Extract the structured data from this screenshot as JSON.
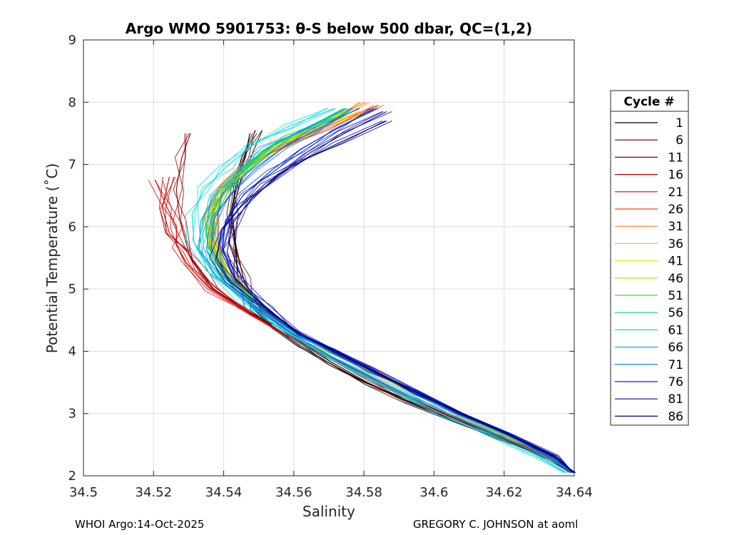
{
  "chart_data": {
    "type": "line",
    "title": "Argo WMO 5901753: θ-S below 500 dbar,  QC=(1,2)",
    "xlabel": "Salinity",
    "ylabel": "Potential Temperature (˚C)",
    "xlim": [
      34.5,
      34.64
    ],
    "ylim": [
      2,
      9
    ],
    "xticks": [
      34.5,
      34.52,
      34.54,
      34.56,
      34.58,
      34.6,
      34.62,
      34.64
    ],
    "xtick_labels": [
      "34.5",
      "34.52",
      "34.54",
      "34.56",
      "34.58",
      "34.6",
      "34.62",
      "34.64"
    ],
    "yticks": [
      2,
      3,
      4,
      5,
      6,
      7,
      8,
      9
    ],
    "ytick_labels": [
      "2",
      "3",
      "4",
      "5",
      "6",
      "7",
      "8",
      "9"
    ],
    "grid": true,
    "legend_title": "Cycle #",
    "legend_position": "outside-right",
    "series": [
      {
        "name": "1",
        "color": "#000000",
        "x": [
          34.5475,
          34.546,
          34.544,
          34.542,
          34.5435,
          34.544,
          34.548,
          34.554,
          34.5615,
          34.5705,
          34.5805,
          34.592,
          34.605,
          34.619,
          34.632,
          34.639
        ],
        "y": [
          7.5,
          7.1,
          6.7,
          6.2,
          5.7,
          5.2,
          4.7,
          4.4,
          4.1,
          3.8,
          3.5,
          3.2,
          2.9,
          2.6,
          2.3,
          2.05
        ]
      },
      {
        "name": "6",
        "color": "#5a0000",
        "x": [
          34.551,
          34.548,
          34.5445,
          34.5425,
          34.5435,
          34.5455,
          34.5485,
          34.554,
          34.5625,
          34.5715,
          34.581,
          34.5925,
          34.6055,
          34.6195,
          34.6325,
          34.6395
        ],
        "y": [
          7.55,
          7.15,
          6.7,
          6.2,
          5.7,
          5.2,
          4.75,
          4.4,
          4.1,
          3.8,
          3.5,
          3.2,
          2.9,
          2.6,
          2.3,
          2.05
        ]
      },
      {
        "name": "11",
        "color": "#8b0000",
        "x": [
          34.5305,
          34.528,
          34.5265,
          34.5275,
          34.5305,
          34.537,
          34.548,
          34.557,
          34.5655,
          34.575,
          34.5855,
          34.597,
          34.6095,
          34.622,
          34.635,
          34.6395
        ],
        "y": [
          7.5,
          7.1,
          6.6,
          6.1,
          5.5,
          5.05,
          4.6,
          4.3,
          4.05,
          3.75,
          3.45,
          3.15,
          2.85,
          2.55,
          2.25,
          2.05
        ]
      },
      {
        "name": "16",
        "color": "#b00000",
        "x": [
          34.5245,
          34.5225,
          34.5245,
          34.5295,
          34.5335,
          34.537,
          34.5475,
          34.5565,
          34.566,
          34.5755,
          34.5855,
          34.597,
          34.6095,
          34.6225,
          34.635,
          34.6395
        ],
        "y": [
          6.8,
          6.3,
          5.9,
          5.6,
          5.3,
          5.0,
          4.6,
          4.3,
          4.05,
          3.75,
          3.45,
          3.15,
          2.85,
          2.55,
          2.25,
          2.05
        ]
      },
      {
        "name": "21",
        "color": "#e00000",
        "x": [
          34.5205,
          34.5235,
          34.5265,
          34.5265,
          34.5295,
          34.536,
          34.5475,
          34.5565,
          34.566,
          34.5755,
          34.5855,
          34.597,
          34.6095,
          34.6225,
          34.635,
          34.6395
        ],
        "y": [
          6.75,
          6.35,
          6.0,
          5.7,
          5.4,
          5.0,
          4.6,
          4.3,
          4.05,
          3.75,
          3.45,
          3.15,
          2.85,
          2.55,
          2.25,
          2.05
        ]
      },
      {
        "name": "26",
        "color": "#ff4400",
        "x": [
          34.584,
          34.569,
          34.559,
          34.549,
          34.541,
          34.5375,
          34.537,
          34.542,
          34.551,
          34.5605,
          34.5705,
          34.5815,
          34.594,
          34.607,
          34.621,
          34.634,
          34.6395
        ],
        "y": [
          7.95,
          7.6,
          7.35,
          7.05,
          6.7,
          6.3,
          5.8,
          5.2,
          4.7,
          4.3,
          4.0,
          3.7,
          3.35,
          3.0,
          2.65,
          2.3,
          2.05
        ]
      },
      {
        "name": "31",
        "color": "#ff7f00",
        "x": [
          34.5805,
          34.568,
          34.557,
          34.5475,
          34.54,
          34.5365,
          34.5365,
          34.5415,
          34.551,
          34.5605,
          34.5705,
          34.5815,
          34.594,
          34.607,
          34.621,
          34.634,
          34.6395
        ],
        "y": [
          8.0,
          7.65,
          7.35,
          7.0,
          6.6,
          6.2,
          5.75,
          5.2,
          4.7,
          4.3,
          4.0,
          3.7,
          3.35,
          3.0,
          2.65,
          2.3,
          2.05
        ]
      },
      {
        "name": "36",
        "color": "#ffbf00",
        "x": [
          34.5785,
          34.566,
          34.556,
          34.547,
          34.5395,
          34.536,
          34.5365,
          34.5415,
          34.551,
          34.5605,
          34.5705,
          34.5815,
          34.594,
          34.607,
          34.621,
          34.634,
          34.6395
        ],
        "y": [
          7.85,
          7.55,
          7.3,
          6.95,
          6.55,
          6.15,
          5.7,
          5.2,
          4.7,
          4.3,
          4.0,
          3.7,
          3.35,
          3.0,
          2.65,
          2.3,
          2.05
        ]
      },
      {
        "name": "41",
        "color": "#e8e800",
        "x": [
          34.5765,
          34.564,
          34.554,
          34.5455,
          34.5385,
          34.5355,
          34.536,
          34.541,
          34.5505,
          34.5605,
          34.5705,
          34.5815,
          34.594,
          34.607,
          34.621,
          34.634,
          34.6395
        ],
        "y": [
          7.8,
          7.5,
          7.25,
          6.9,
          6.5,
          6.1,
          5.65,
          5.15,
          4.7,
          4.3,
          4.0,
          3.7,
          3.35,
          3.0,
          2.65,
          2.3,
          2.05
        ]
      },
      {
        "name": "46",
        "color": "#9ee600",
        "x": [
          34.576,
          34.564,
          34.555,
          34.547,
          34.5405,
          34.5375,
          34.5375,
          34.542,
          34.551,
          34.5605,
          34.5705,
          34.5815,
          34.594,
          34.607,
          34.621,
          34.634,
          34.6395
        ],
        "y": [
          7.9,
          7.6,
          7.35,
          7.0,
          6.6,
          6.2,
          5.75,
          5.2,
          4.7,
          4.3,
          4.0,
          3.7,
          3.35,
          3.0,
          2.65,
          2.3,
          2.05
        ]
      },
      {
        "name": "51",
        "color": "#44dd22",
        "x": [
          34.574,
          34.563,
          34.554,
          34.5465,
          34.54,
          34.5365,
          34.5365,
          34.5415,
          34.551,
          34.5605,
          34.5705,
          34.5815,
          34.594,
          34.607,
          34.621,
          34.634,
          34.6395
        ],
        "y": [
          7.85,
          7.55,
          7.3,
          6.95,
          6.55,
          6.15,
          5.7,
          5.2,
          4.7,
          4.3,
          4.0,
          3.7,
          3.35,
          3.0,
          2.65,
          2.3,
          2.05
        ]
      },
      {
        "name": "56",
        "color": "#00d48a",
        "x": [
          34.5705,
          34.559,
          34.551,
          34.5445,
          34.5385,
          34.535,
          34.5355,
          34.541,
          34.5505,
          34.5605,
          34.5705,
          34.5815,
          34.594,
          34.607,
          34.621,
          34.634,
          34.6395
        ],
        "y": [
          7.75,
          7.45,
          7.2,
          6.85,
          6.45,
          6.05,
          5.6,
          5.15,
          4.7,
          4.3,
          4.0,
          3.7,
          3.35,
          3.0,
          2.65,
          2.3,
          2.05
        ]
      },
      {
        "name": "61",
        "color": "#00e0e0",
        "x": [
          34.5715,
          34.558,
          34.548,
          34.5405,
          34.5345,
          34.531,
          34.5315,
          34.5365,
          34.5455,
          34.5555,
          34.5655,
          34.5765,
          34.589,
          34.602,
          34.616,
          34.6295,
          34.6375
        ],
        "y": [
          7.9,
          7.6,
          7.3,
          6.95,
          6.6,
          6.2,
          5.75,
          5.3,
          4.8,
          4.4,
          4.05,
          3.7,
          3.35,
          3.0,
          2.65,
          2.3,
          2.05
        ]
      },
      {
        "name": "66",
        "color": "#00a8f0",
        "x": [
          34.575,
          34.562,
          34.552,
          34.5445,
          34.5375,
          34.5335,
          34.533,
          34.538,
          34.5475,
          34.5575,
          34.5675,
          34.5785,
          34.591,
          34.6045,
          34.6185,
          34.632,
          34.6395
        ],
        "y": [
          7.9,
          7.55,
          7.25,
          6.9,
          6.5,
          6.1,
          5.65,
          5.2,
          4.75,
          4.35,
          4.0,
          3.7,
          3.35,
          3.0,
          2.65,
          2.3,
          2.05
        ]
      },
      {
        "name": "71",
        "color": "#0066ff",
        "x": [
          34.5785,
          34.566,
          34.5565,
          34.5485,
          34.5415,
          34.537,
          34.5365,
          34.541,
          34.5505,
          34.5605,
          34.5705,
          34.5815,
          34.594,
          34.607,
          34.621,
          34.634,
          34.6395
        ],
        "y": [
          7.9,
          7.55,
          7.25,
          6.9,
          6.5,
          6.1,
          5.65,
          5.2,
          4.7,
          4.3,
          4.0,
          3.7,
          3.35,
          3.0,
          2.65,
          2.3,
          2.05
        ]
      },
      {
        "name": "76",
        "color": "#0028dd",
        "x": [
          34.5835,
          34.5715,
          34.562,
          34.5535,
          34.5455,
          34.5405,
          34.5395,
          34.543,
          34.5515,
          34.561,
          34.571,
          34.582,
          34.5945,
          34.6075,
          34.6215,
          34.6345,
          34.64
        ],
        "y": [
          7.9,
          7.55,
          7.25,
          6.9,
          6.5,
          6.1,
          5.65,
          5.2,
          4.7,
          4.3,
          4.0,
          3.7,
          3.35,
          3.0,
          2.65,
          2.3,
          2.05
        ]
      },
      {
        "name": "81",
        "color": "#0000aa",
        "x": [
          34.5865,
          34.5745,
          34.565,
          34.556,
          34.548,
          34.5425,
          34.541,
          34.5435,
          34.552,
          34.5615,
          34.5715,
          34.5825,
          34.595,
          34.608,
          34.622,
          34.635,
          34.64
        ],
        "y": [
          7.85,
          7.5,
          7.2,
          6.85,
          6.45,
          6.05,
          5.6,
          5.15,
          4.7,
          4.3,
          4.0,
          3.7,
          3.35,
          3.0,
          2.65,
          2.3,
          2.05
        ]
      },
      {
        "name": "86",
        "color": "#00008b",
        "x": [
          34.5865,
          34.573,
          34.562,
          34.552,
          34.5445,
          34.5395,
          34.538,
          34.542,
          34.5515,
          34.5615,
          34.5715,
          34.5825,
          34.595,
          34.608,
          34.622,
          34.635,
          34.64
        ],
        "y": [
          7.7,
          7.35,
          7.05,
          6.7,
          6.3,
          5.95,
          5.5,
          5.1,
          4.7,
          4.3,
          4.0,
          3.7,
          3.35,
          3.0,
          2.65,
          2.3,
          2.05
        ]
      }
    ]
  },
  "footer": {
    "left": "WHOI Argo:14-Oct-2025",
    "right": "GREGORY C. JOHNSON at aoml"
  }
}
